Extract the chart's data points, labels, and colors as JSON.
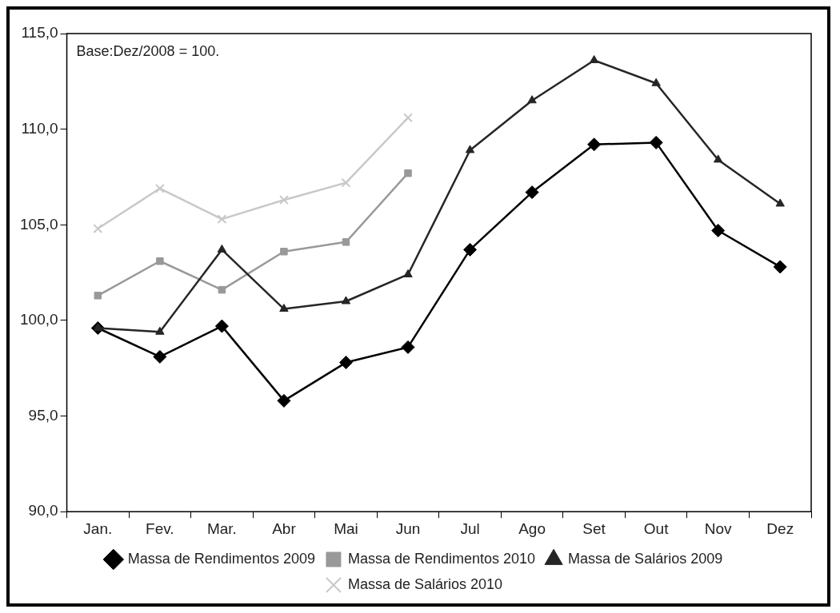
{
  "chart_data": {
    "type": "line",
    "categories": [
      "Jan.",
      "Fev.",
      "Mar.",
      "Abr",
      "Mai",
      "Jun",
      "Jul",
      "Ago",
      "Set",
      "Out",
      "Nov",
      "Dez"
    ],
    "ylim": [
      90,
      115
    ],
    "yticks": [
      {
        "value": 90,
        "label": "90,0"
      },
      {
        "value": 95,
        "label": "95,0"
      },
      {
        "value": 100,
        "label": "100,0"
      },
      {
        "value": 105,
        "label": "105,0"
      },
      {
        "value": 110,
        "label": "110,0"
      },
      {
        "value": 115,
        "label": "115,0"
      }
    ],
    "grid": false,
    "legend": "bottom",
    "line_style": "solid",
    "annotations": [
      "Base:Dez/2008 = 100."
    ],
    "series": [
      {
        "name": "Massa de Rendimentos 2009",
        "color": "#000000",
        "marker": "diamond",
        "values": [
          99.6,
          98.1,
          99.7,
          95.8,
          97.8,
          98.6,
          103.7,
          106.7,
          109.2,
          109.3,
          104.7,
          102.8
        ]
      },
      {
        "name": "Massa de Rendimentos 2010",
        "color": "#999999",
        "marker": "square",
        "values": [
          101.3,
          103.1,
          101.6,
          103.6,
          104.1,
          107.7,
          null,
          null,
          null,
          null,
          null,
          null
        ]
      },
      {
        "name": "Massa de Salários 2009",
        "color": "#262626",
        "marker": "triangle",
        "values": [
          99.6,
          99.4,
          103.7,
          100.6,
          101.0,
          102.4,
          108.9,
          111.5,
          113.6,
          112.4,
          108.4,
          106.1
        ]
      },
      {
        "name": "Massa de Salários 2010",
        "color": "#c8c8c8",
        "marker": "cross",
        "values": [
          104.8,
          106.9,
          105.3,
          106.3,
          107.2,
          110.6,
          null,
          null,
          null,
          null,
          null,
          null
        ]
      }
    ]
  }
}
